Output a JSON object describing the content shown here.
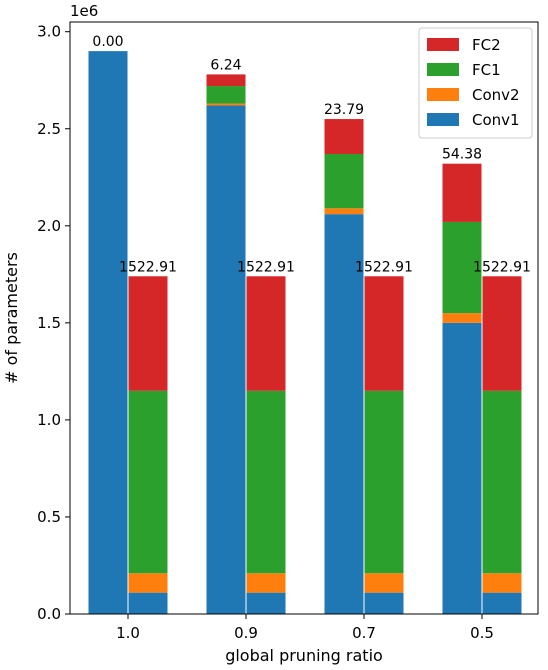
{
  "chart_data": {
    "type": "bar",
    "subtype": "stacked-grouped",
    "xlabel": "global pruning ratio",
    "ylabel": "# of parameters",
    "y_scale_label": "1e6",
    "ylim": [
      0,
      3.05
    ],
    "y_ticks": [
      "0.0",
      "0.5",
      "1.0",
      "1.5",
      "2.0",
      "2.5",
      "3.0"
    ],
    "y_tick_values": [
      0,
      0.5,
      1.0,
      1.5,
      2.0,
      2.5,
      3.0
    ],
    "categories": [
      "1.0",
      "0.9",
      "0.7",
      "0.5"
    ],
    "legend_position": "top-right",
    "legend": [
      {
        "name": "FC2",
        "color": "#d62728"
      },
      {
        "name": "FC1",
        "color": "#2ca02c"
      },
      {
        "name": "Conv2",
        "color": "#ff7f0e"
      },
      {
        "name": "Conv1",
        "color": "#1f77b4"
      }
    ],
    "groups": [
      {
        "role": "left",
        "labels": [
          "0.00",
          "6.24",
          "23.79",
          "54.38"
        ],
        "series": [
          {
            "name": "Conv1",
            "values": [
              2.9,
              2.62,
              2.06,
              1.5
            ]
          },
          {
            "name": "Conv2",
            "values": [
              0.0,
              0.01,
              0.03,
              0.05
            ]
          },
          {
            "name": "FC1",
            "values": [
              0.0,
              0.09,
              0.28,
              0.47
            ]
          },
          {
            "name": "FC2",
            "values": [
              0.0,
              0.06,
              0.18,
              0.3
            ]
          }
        ]
      },
      {
        "role": "right",
        "labels": [
          "1522.91",
          "1522.91",
          "1522.91",
          "1522.91"
        ],
        "series": [
          {
            "name": "Conv1",
            "values": [
              0.11,
              0.11,
              0.11,
              0.11
            ]
          },
          {
            "name": "Conv2",
            "values": [
              0.1,
              0.1,
              0.1,
              0.1
            ]
          },
          {
            "name": "FC1",
            "values": [
              0.94,
              0.94,
              0.94,
              0.94
            ]
          },
          {
            "name": "FC2",
            "values": [
              0.59,
              0.59,
              0.59,
              0.59
            ]
          }
        ]
      }
    ]
  }
}
